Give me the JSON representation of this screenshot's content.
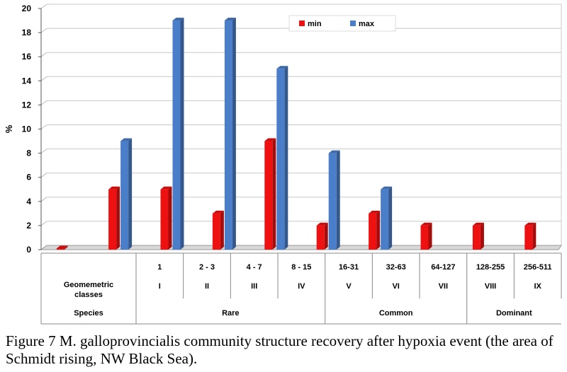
{
  "chart_data": {
    "type": "bar",
    "ylabel": "%",
    "ylim": [
      0,
      20
    ],
    "yticks": [
      "0",
      "2",
      "4",
      "6",
      "8",
      "10",
      "12",
      "14",
      "16",
      "18",
      "20"
    ],
    "categories": [
      "",
      "1",
      "2 - 3",
      "4 - 7",
      "8 - 15",
      "16-31",
      "32-63",
      "64-127",
      "128-255",
      "256-511"
    ],
    "series": [
      {
        "name": "min",
        "color": "#ee1111",
        "values": [
          0,
          5,
          5,
          3,
          9,
          2,
          3,
          2,
          2,
          2
        ]
      },
      {
        "name": "max",
        "color": "#4a7ec8",
        "values": [
          null,
          9,
          19,
          19,
          15,
          8,
          5,
          null,
          null,
          null
        ]
      }
    ],
    "legend": "top-center",
    "grid": true,
    "table_rows": [
      {
        "label": "Geomemetric classes",
        "label_lines": [
          "Geomemetric",
          "classes"
        ],
        "cells": [
          "",
          "I",
          "II",
          "III",
          "IV",
          "V",
          "VI",
          "VII",
          "VIII",
          "IX"
        ]
      },
      {
        "label": "Species",
        "groups": [
          {
            "label": "Rare",
            "span": [
              1,
              4
            ]
          },
          {
            "label": "Common",
            "span": [
              5,
              7
            ]
          },
          {
            "label": "Dominant",
            "span": [
              8,
              9
            ]
          }
        ]
      }
    ]
  },
  "caption": "Figure 7 M. galloprovincialis community structure recovery after hypoxia event (the area of Schmidt rising, NW Black Sea)."
}
